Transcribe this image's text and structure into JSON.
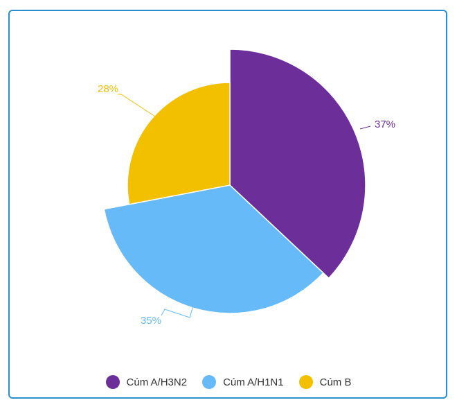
{
  "chart_data": {
    "type": "pie",
    "title": "",
    "categories": [
      "Cúm A/H3N2",
      "Cúm A/H1N1",
      "Cúm B"
    ],
    "values": [
      37,
      35,
      28
    ],
    "value_labels": [
      "37%",
      "35%",
      "28%"
    ],
    "colors": [
      "#6c2f99",
      "#66baf7",
      "#f3c000"
    ],
    "start_angle": "top, clockwise",
    "legend_position": "bottom"
  },
  "legend": {
    "items": [
      {
        "label": "Cúm A/H3N2",
        "color": "#6c2f99"
      },
      {
        "label": "Cúm A/H1N1",
        "color": "#66baf7"
      },
      {
        "label": "Cúm B",
        "color": "#f3c000"
      }
    ]
  }
}
